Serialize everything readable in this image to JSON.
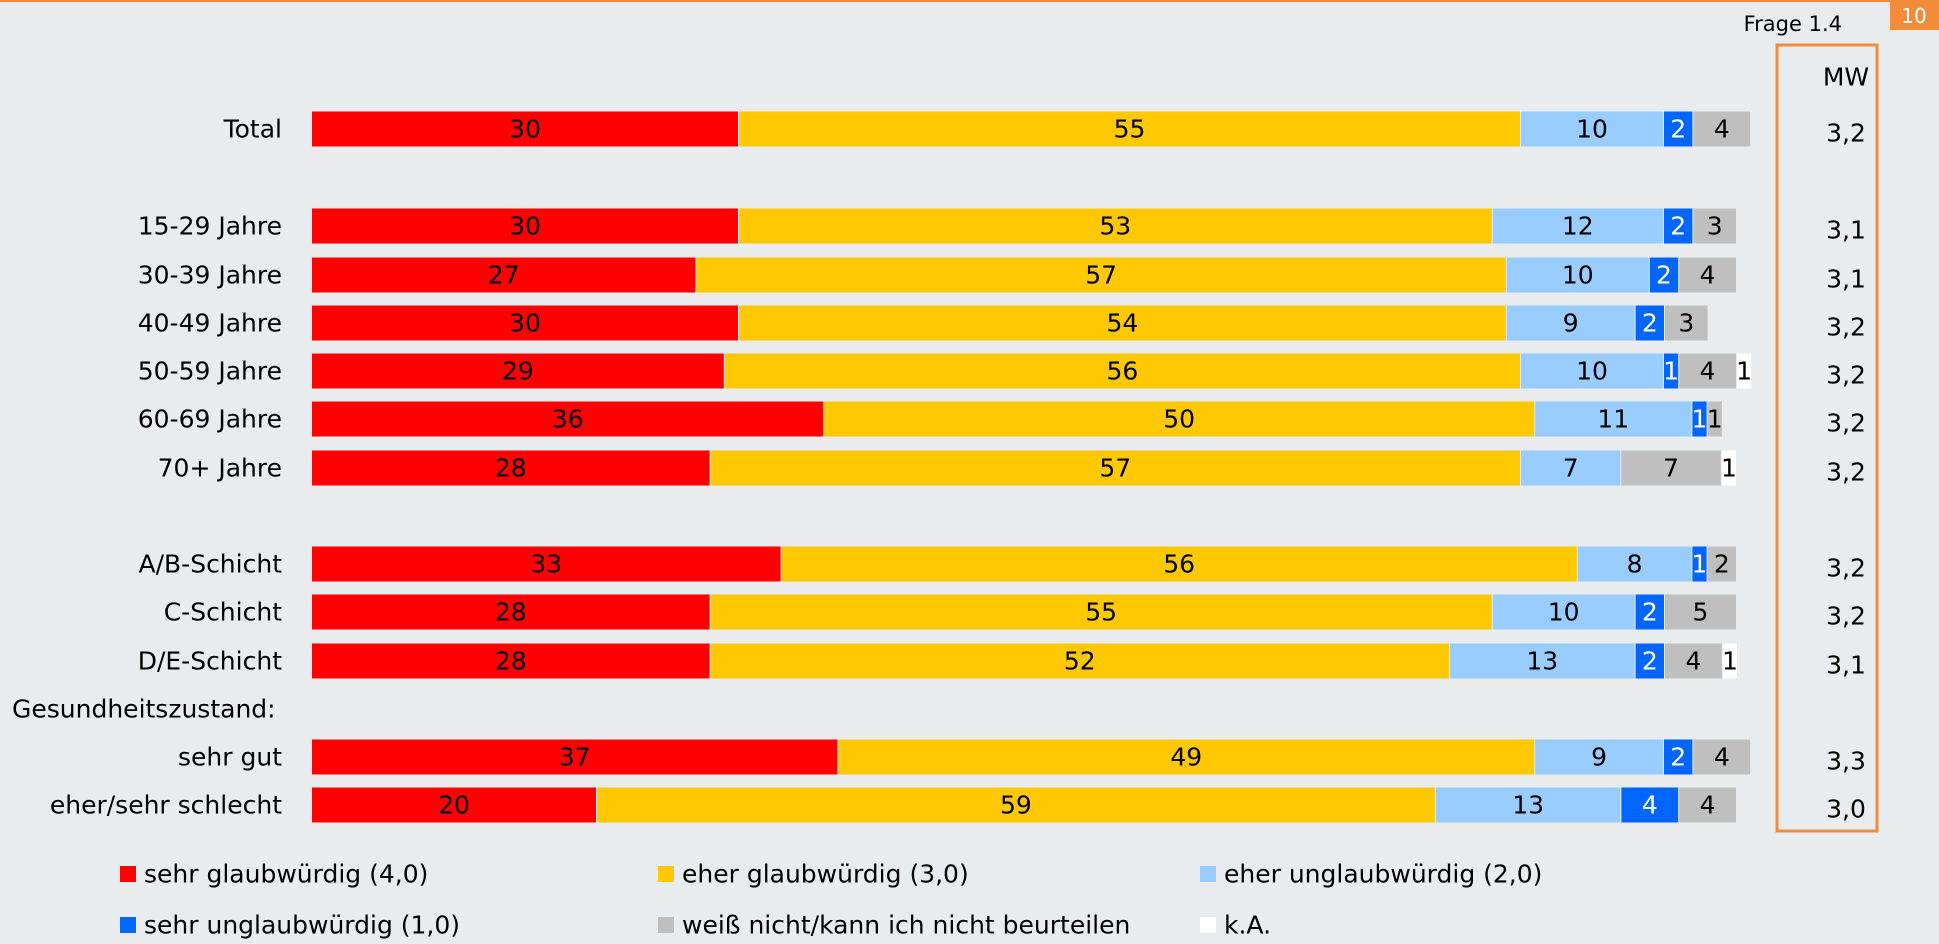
{
  "header": {
    "question": "Frage 1.4",
    "page": "10"
  },
  "chart_data": {
    "type": "stacked-bar-horizontal",
    "categories": [
      "Total",
      "15-29 Jahre",
      "30-39 Jahre",
      "40-49 Jahre",
      "50-59 Jahre",
      "60-69 Jahre",
      "70+ Jahre",
      "A/B-Schicht",
      "C-Schicht",
      "D/E-Schicht",
      "sehr gut",
      "eher/sehr schlecht"
    ],
    "group_label": "Gesundheitszustand:",
    "series": [
      {
        "name": "sehr glaubwürdig (4,0)",
        "color": "#ff0000",
        "values": [
          30,
          30,
          27,
          30,
          29,
          36,
          28,
          33,
          28,
          28,
          37,
          20
        ]
      },
      {
        "name": "eher glaubwürdig (3,0)",
        "color": "#ffc800",
        "values": [
          55,
          53,
          57,
          54,
          56,
          50,
          57,
          56,
          55,
          52,
          49,
          59
        ]
      },
      {
        "name": "eher unglaubwürdig (2,0)",
        "color": "#99ccff",
        "values": [
          10,
          12,
          10,
          9,
          10,
          11,
          7,
          8,
          10,
          13,
          9,
          13
        ]
      },
      {
        "name": "sehr unglaubwürdig (1,0)",
        "color": "#0066ff",
        "values": [
          2,
          2,
          2,
          2,
          1,
          1,
          null,
          1,
          2,
          2,
          2,
          4
        ]
      },
      {
        "name": "weiß nicht/kann ich nicht beurteilen",
        "color": "#bfbfbf",
        "values": [
          4,
          3,
          4,
          3,
          4,
          1,
          7,
          2,
          5,
          4,
          4,
          4
        ]
      },
      {
        "name": "k.A.",
        "color": "#ffffff",
        "values": [
          null,
          null,
          null,
          null,
          1,
          null,
          1,
          null,
          null,
          1,
          null,
          null
        ]
      }
    ],
    "mw": {
      "title": "MW",
      "values": [
        3.2,
        3.1,
        3.1,
        3.2,
        3.2,
        3.2,
        3.2,
        3.2,
        3.2,
        3.1,
        3.3,
        3.0
      ],
      "value_labels": [
        "3,2",
        "3,1",
        "3,1",
        "3,2",
        "3,2",
        "3,2",
        "3,2",
        "3,2",
        "3,2",
        "3,1",
        "3,3",
        "3,0"
      ]
    }
  }
}
